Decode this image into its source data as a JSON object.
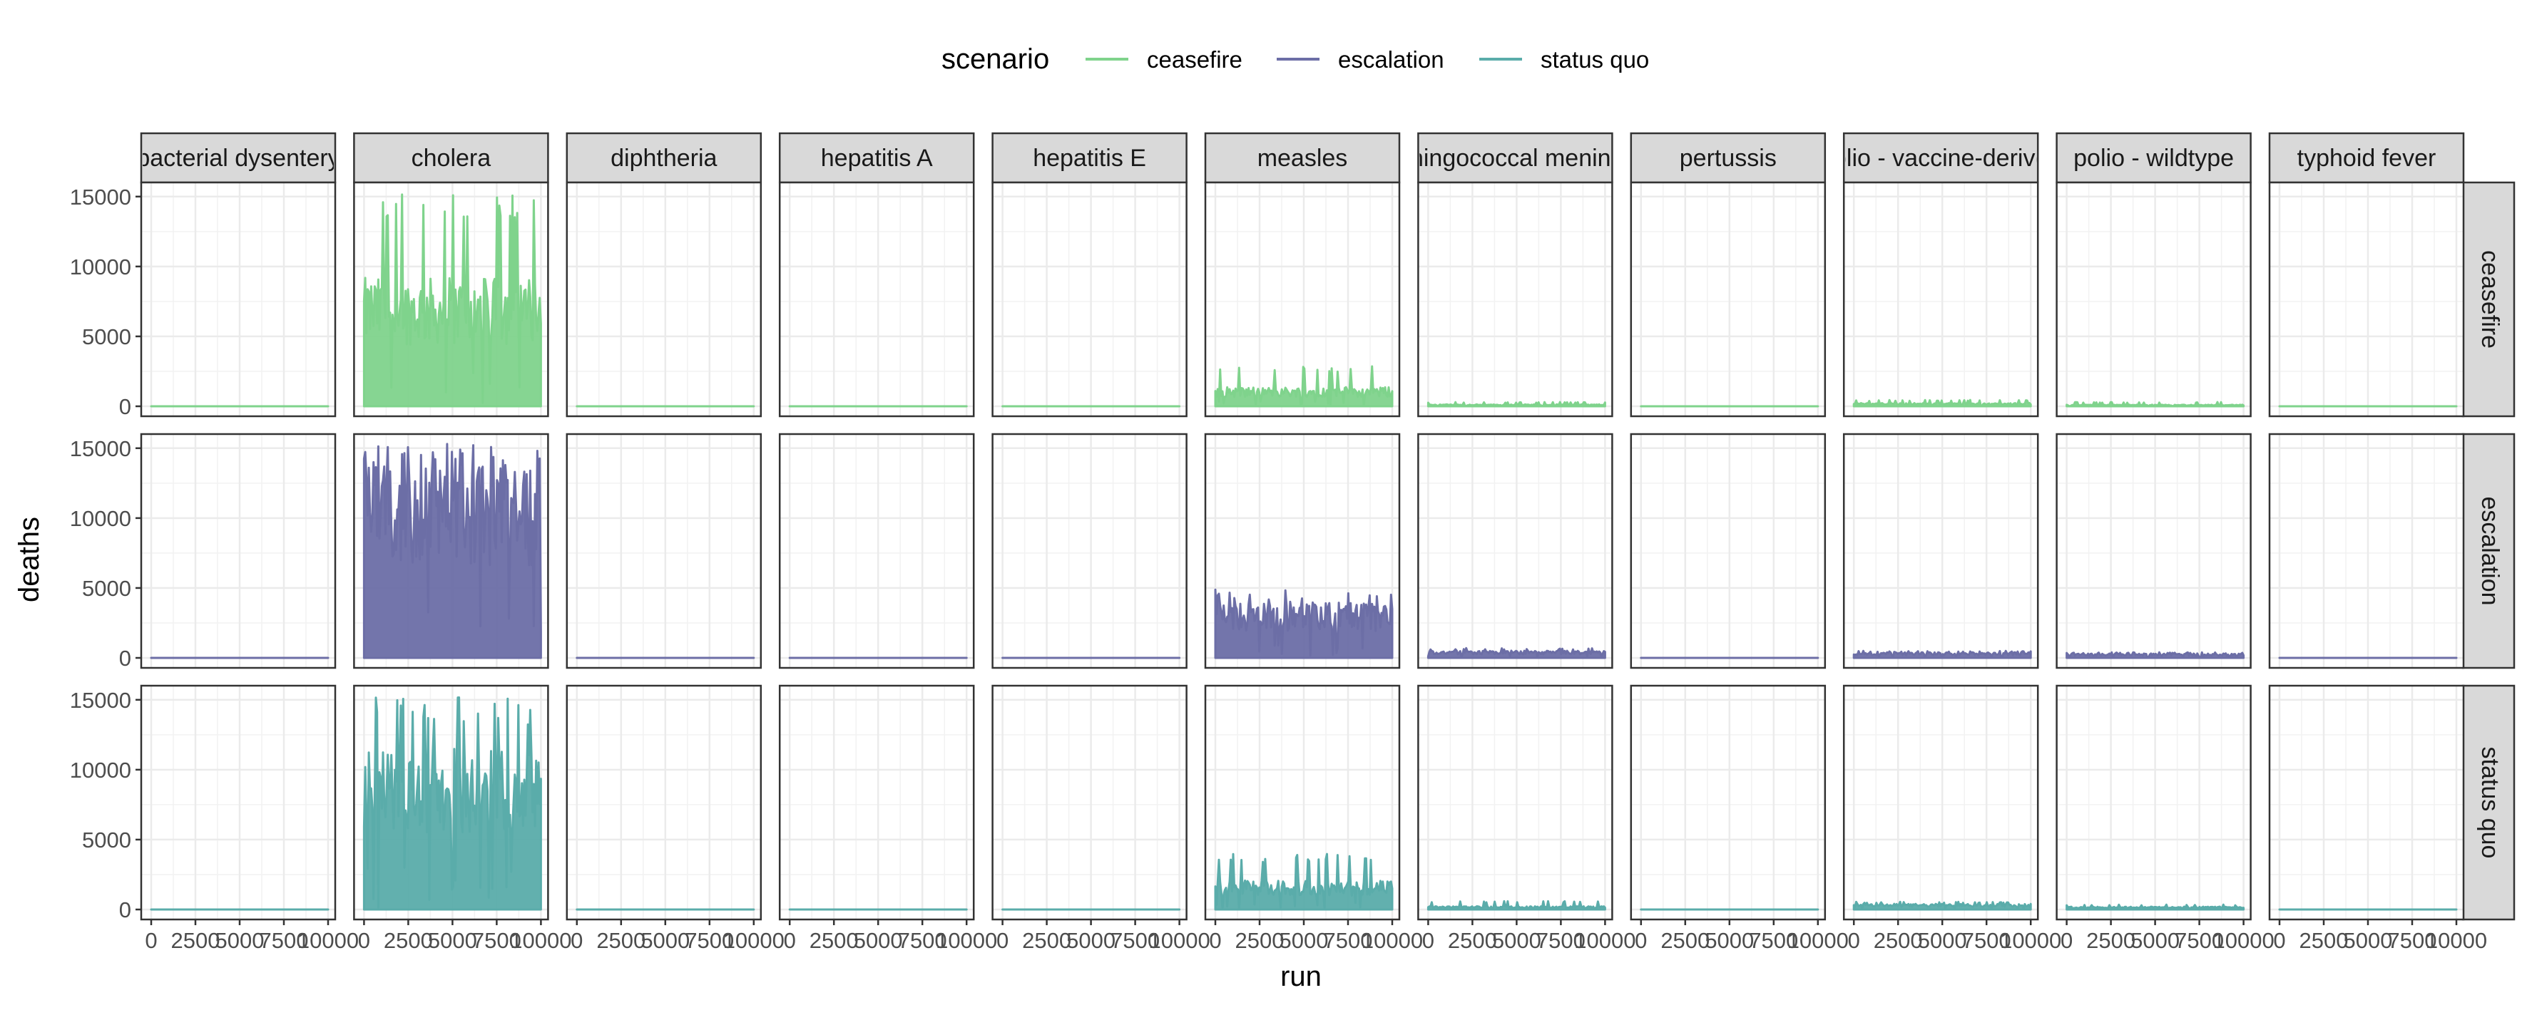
{
  "chart_data": {
    "type": "area",
    "facet_columns": [
      "bacterial dysentery",
      "cholera",
      "diphtheria",
      "hepatitis A",
      "hepatitis E",
      "measles",
      "meningococcal meningitis",
      "pertussis",
      "polio - vaccine-derived",
      "polio - wildtype",
      "typhoid fever"
    ],
    "facet_rows": [
      "ceasefire",
      "escalation",
      "status quo"
    ],
    "xlabel": "run",
    "ylabel": "deaths",
    "xlim": [
      0,
      10000
    ],
    "ylim": [
      0,
      15500
    ],
    "x_ticks": [
      0,
      2500,
      5000,
      7500,
      10000
    ],
    "x_tick_labels": [
      "0",
      "2500",
      "5000",
      "7500",
      "10000"
    ],
    "y_ticks": [
      0,
      5000,
      10000,
      15000
    ],
    "y_tick_labels": [
      "0",
      "5000",
      "10000",
      "15000"
    ],
    "grid": true,
    "legend": {
      "title": "scenario",
      "position": "top",
      "entries": [
        "ceasefire",
        "escalation",
        "status quo"
      ]
    },
    "colors": {
      "ceasefire": "#7fd38c",
      "escalation": "#6c6ea6",
      "status quo": "#5aacaa"
    },
    "series_summary": [
      {
        "scenario": "ceasefire",
        "disease": "bacterial dysentery",
        "typical": 0,
        "max": 30
      },
      {
        "scenario": "ceasefire",
        "disease": "cholera",
        "typical": 8000,
        "max": 15300
      },
      {
        "scenario": "ceasefire",
        "disease": "diphtheria",
        "typical": 0,
        "max": 30
      },
      {
        "scenario": "ceasefire",
        "disease": "hepatitis A",
        "typical": 0,
        "max": 30
      },
      {
        "scenario": "ceasefire",
        "disease": "hepatitis E",
        "typical": 0,
        "max": 30
      },
      {
        "scenario": "ceasefire",
        "disease": "measles",
        "typical": 1200,
        "max": 2900
      },
      {
        "scenario": "ceasefire",
        "disease": "meningococcal meningitis",
        "typical": 120,
        "max": 300
      },
      {
        "scenario": "ceasefire",
        "disease": "pertussis",
        "typical": 0,
        "max": 30
      },
      {
        "scenario": "ceasefire",
        "disease": "polio - vaccine-derived",
        "typical": 200,
        "max": 450
      },
      {
        "scenario": "ceasefire",
        "disease": "polio - wildtype",
        "typical": 100,
        "max": 300
      },
      {
        "scenario": "ceasefire",
        "disease": "typhoid fever",
        "typical": 0,
        "max": 30
      },
      {
        "scenario": "escalation",
        "disease": "bacterial dysentery",
        "typical": 0,
        "max": 30
      },
      {
        "scenario": "escalation",
        "disease": "cholera",
        "typical": 12000,
        "max": 15400
      },
      {
        "scenario": "escalation",
        "disease": "diphtheria",
        "typical": 0,
        "max": 30
      },
      {
        "scenario": "escalation",
        "disease": "hepatitis A",
        "typical": 0,
        "max": 30
      },
      {
        "scenario": "escalation",
        "disease": "hepatitis E",
        "typical": 0,
        "max": 30
      },
      {
        "scenario": "escalation",
        "disease": "measles",
        "typical": 3500,
        "max": 4900
      },
      {
        "scenario": "escalation",
        "disease": "meningococcal meningitis",
        "typical": 450,
        "max": 700
      },
      {
        "scenario": "escalation",
        "disease": "pertussis",
        "typical": 0,
        "max": 30
      },
      {
        "scenario": "escalation",
        "disease": "polio - vaccine-derived",
        "typical": 350,
        "max": 500
      },
      {
        "scenario": "escalation",
        "disease": "polio - wildtype",
        "typical": 280,
        "max": 400
      },
      {
        "scenario": "escalation",
        "disease": "typhoid fever",
        "typical": 0,
        "max": 30
      },
      {
        "scenario": "status quo",
        "disease": "bacterial dysentery",
        "typical": 0,
        "max": 30
      },
      {
        "scenario": "status quo",
        "disease": "cholera",
        "typical": 10000,
        "max": 15200
      },
      {
        "scenario": "status quo",
        "disease": "diphtheria",
        "typical": 0,
        "max": 30
      },
      {
        "scenario": "status quo",
        "disease": "hepatitis A",
        "typical": 0,
        "max": 30
      },
      {
        "scenario": "status quo",
        "disease": "hepatitis E",
        "typical": 0,
        "max": 30
      },
      {
        "scenario": "status quo",
        "disease": "measles",
        "typical": 1800,
        "max": 4000
      },
      {
        "scenario": "status quo",
        "disease": "meningococcal meningitis",
        "typical": 200,
        "max": 600
      },
      {
        "scenario": "status quo",
        "disease": "pertussis",
        "typical": 0,
        "max": 30
      },
      {
        "scenario": "status quo",
        "disease": "polio - vaccine-derived",
        "typical": 350,
        "max": 550
      },
      {
        "scenario": "status quo",
        "disease": "polio - wildtype",
        "typical": 180,
        "max": 350
      },
      {
        "scenario": "status quo",
        "disease": "typhoid fever",
        "typical": 0,
        "max": 30
      }
    ]
  }
}
